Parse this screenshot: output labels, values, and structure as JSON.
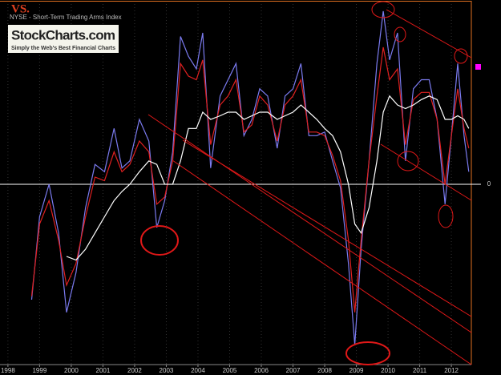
{
  "chart_data": {
    "type": "line",
    "title": "NYSE - Short-Term Trading Arms Index",
    "overlay_label": "VS.",
    "logo": {
      "name": "StockCharts.com",
      "tagline": "Simply the Web's Best Financial Charts"
    },
    "x": [
      1998.75,
      1999.0,
      1999.3,
      1999.6,
      1999.85,
      2000.15,
      2000.45,
      2000.75,
      2001.05,
      2001.35,
      2001.6,
      2001.85,
      2002.15,
      2002.45,
      2002.7,
      2002.95,
      2003.2,
      2003.45,
      2003.7,
      2003.95,
      2004.15,
      2004.4,
      2004.7,
      2004.95,
      2005.2,
      2005.45,
      2005.7,
      2005.95,
      2006.2,
      2006.5,
      2006.75,
      2007.0,
      2007.25,
      2007.5,
      2007.75,
      2008.0,
      2008.25,
      2008.5,
      2008.75,
      2008.95,
      2009.15,
      2009.4,
      2009.65,
      2009.85,
      2010.05,
      2010.3,
      2010.55,
      2010.8,
      2011.05,
      2011.3,
      2011.55,
      2011.8,
      2012.0,
      2012.2,
      2012.4,
      2012.55
    ],
    "series": [
      {
        "color": "#7b7bf0",
        "values": [
          -0.64,
          -0.18,
          0,
          -0.27,
          -0.71,
          -0.49,
          -0.13,
          0.11,
          0.07,
          0.31,
          0.09,
          0.13,
          0.36,
          0.24,
          -0.24,
          -0.09,
          0.18,
          0.82,
          0.71,
          0.64,
          0.84,
          0.09,
          0.49,
          0.58,
          0.67,
          0.27,
          0.36,
          0.53,
          0.49,
          0.2,
          0.49,
          0.53,
          0.67,
          0.27,
          0.27,
          0.29,
          0.13,
          -0.02,
          -0.44,
          -0.89,
          -0.36,
          0.13,
          0.67,
          0.96,
          0.69,
          0.84,
          0.13,
          0.53,
          0.58,
          0.58,
          0.36,
          -0.11,
          0.27,
          0.67,
          0.27,
          0.07
        ]
      },
      {
        "color": "#e02020",
        "values": [
          -0.62,
          -0.22,
          -0.09,
          -0.31,
          -0.56,
          -0.44,
          -0.18,
          0.04,
          0.02,
          0.18,
          0.07,
          0.11,
          0.24,
          0.18,
          -0.11,
          -0.07,
          0.13,
          0.67,
          0.6,
          0.58,
          0.69,
          0.22,
          0.44,
          0.49,
          0.58,
          0.29,
          0.33,
          0.49,
          0.44,
          0.24,
          0.44,
          0.49,
          0.58,
          0.29,
          0.29,
          0.27,
          0.16,
          0.02,
          -0.31,
          -0.71,
          -0.31,
          0.13,
          0.49,
          0.76,
          0.58,
          0.64,
          0.22,
          0.47,
          0.51,
          0.51,
          0.36,
          0,
          0.27,
          0.53,
          0.31,
          0.2
        ]
      },
      {
        "color": "#ffffff",
        "values": [
          null,
          null,
          null,
          null,
          -0.4,
          -0.42,
          -0.36,
          -0.27,
          -0.18,
          -0.09,
          -0.04,
          0,
          0.07,
          0.13,
          0.11,
          0,
          0,
          0.13,
          0.31,
          0.31,
          0.4,
          0.36,
          0.38,
          0.4,
          0.4,
          0.36,
          0.38,
          0.4,
          0.4,
          0.36,
          0.38,
          0.4,
          0.44,
          0.4,
          0.36,
          0.31,
          0.27,
          0.18,
          0,
          -0.22,
          -0.27,
          -0.13,
          0.13,
          0.4,
          0.49,
          0.44,
          0.42,
          0.44,
          0.47,
          0.49,
          0.47,
          0.36,
          0.36,
          0.38,
          0.36,
          0.31
        ]
      }
    ],
    "xlim": [
      1997.75,
      2012.63
    ],
    "xticks": [
      1998,
      1999,
      2000,
      2001,
      2002,
      2003,
      2004,
      2005,
      2006,
      2007,
      2008,
      2009,
      2010,
      2011,
      2012
    ],
    "ylim": [
      -1,
      1
    ],
    "yticks": [
      0
    ],
    "grid": true
  }
}
